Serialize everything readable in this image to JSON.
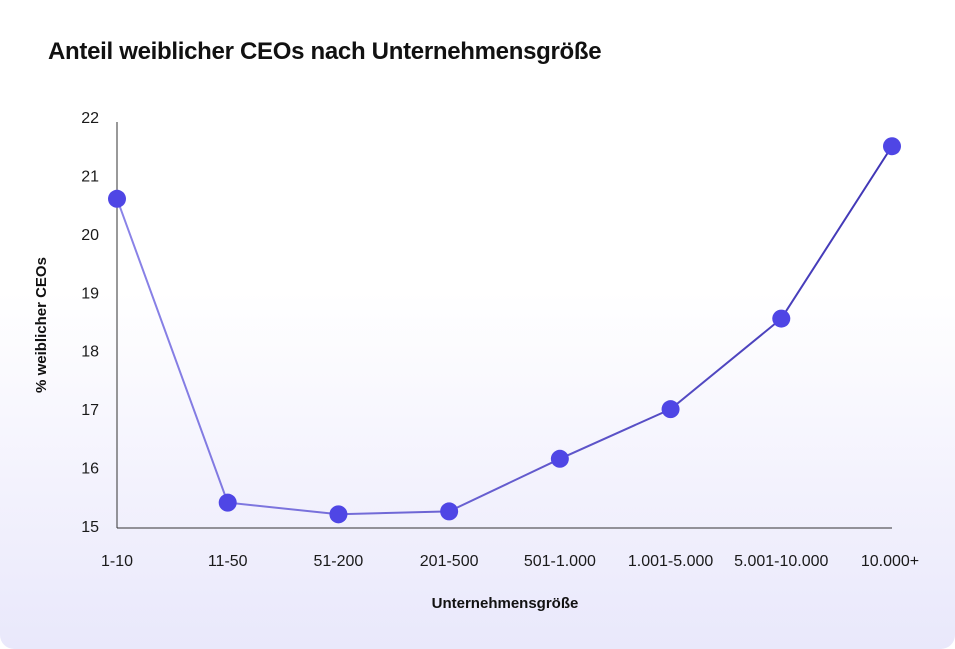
{
  "chart_data": {
    "type": "line",
    "title": "Anteil weiblicher CEOs nach Unternehmensgröße",
    "xlabel": "Unternehmensgröße",
    "ylabel": "% weiblicher CEOs",
    "categories": [
      "1-10",
      "11-50",
      "51-200",
      "201-500",
      "501-1.000",
      "1.001-5.000",
      "5.001-10.000",
      "10.000+"
    ],
    "values": [
      20.6,
      15.4,
      15.2,
      15.25,
      16.15,
      17.0,
      18.55,
      21.5
    ],
    "ylim": [
      15,
      22
    ],
    "yticks": [
      "15",
      "16",
      "17",
      "18",
      "19",
      "20",
      "21",
      "22"
    ],
    "grid": false,
    "colors": {
      "marker": "#4f46e5",
      "line_start": "#8b84e8",
      "line_end": "#3f35b5"
    }
  }
}
